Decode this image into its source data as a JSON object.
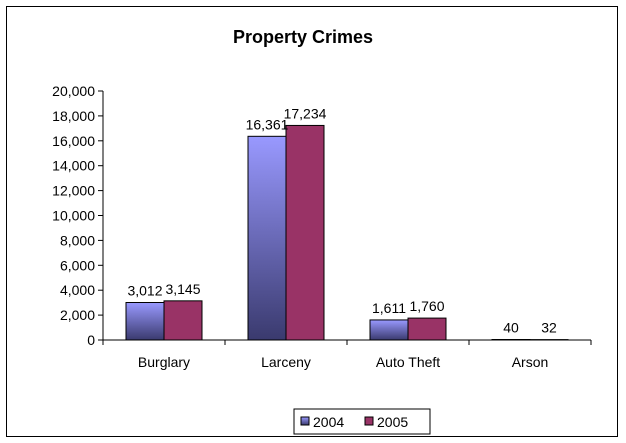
{
  "chart_data": {
    "type": "bar",
    "title": "Property Crimes",
    "categories": [
      "Burglary",
      "Larceny",
      "Auto Theft",
      "Arson"
    ],
    "series": [
      {
        "name": "2004",
        "values": [
          3012,
          16361,
          1611,
          40
        ],
        "labels": [
          "3,012",
          "16,361",
          "1,611",
          "40"
        ],
        "color": "#9999ff",
        "color_dark": "#3a3a6e"
      },
      {
        "name": "2005",
        "values": [
          3145,
          17234,
          1760,
          32
        ],
        "labels": [
          "3,145",
          "17,234",
          "1,760",
          "32"
        ],
        "color": "#993366"
      }
    ],
    "ylim": [
      0,
      20000
    ],
    "yticks": [
      0,
      2000,
      4000,
      6000,
      8000,
      10000,
      12000,
      14000,
      16000,
      18000,
      20000
    ],
    "ytick_labels": [
      "0",
      "2,000",
      "4,000",
      "6,000",
      "8,000",
      "10,000",
      "12,000",
      "14,000",
      "16,000",
      "18,000",
      "20,000"
    ],
    "xlabel": "",
    "ylabel": "",
    "grid": false,
    "legend_position": "bottom"
  }
}
